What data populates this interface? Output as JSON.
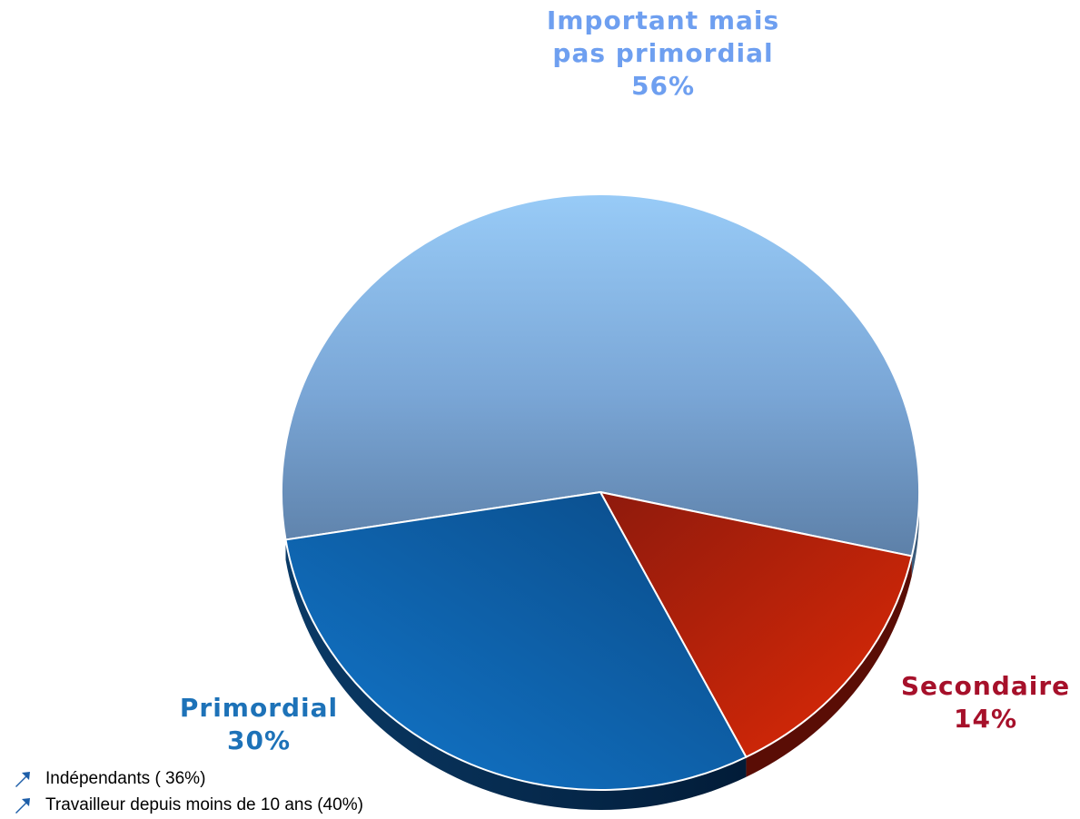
{
  "chart_data": {
    "type": "pie",
    "title": "",
    "slices": [
      {
        "label_line1": "Important mais",
        "label_line2": "pas primordial",
        "value": 56,
        "value_label": "56%",
        "color": "#6f9fd8",
        "label_color": "#6e9ff0"
      },
      {
        "label_line1": "Secondaire",
        "label_line2": "",
        "value": 14,
        "value_label": "14%",
        "color": "#c4200a",
        "label_color": "#a6102a"
      },
      {
        "label_line1": "Primordial",
        "label_line2": "",
        "value": 30,
        "value_label": "30%",
        "color": "#0f66b4",
        "label_color": "#1d72b8"
      }
    ]
  },
  "notes": {
    "icon": "arrow-up-right-icon",
    "icon_color": "#1d5ea8",
    "items": [
      "Indépendants ( 36%)",
      "Travailleur depuis moins de 10 ans (40%)"
    ]
  }
}
